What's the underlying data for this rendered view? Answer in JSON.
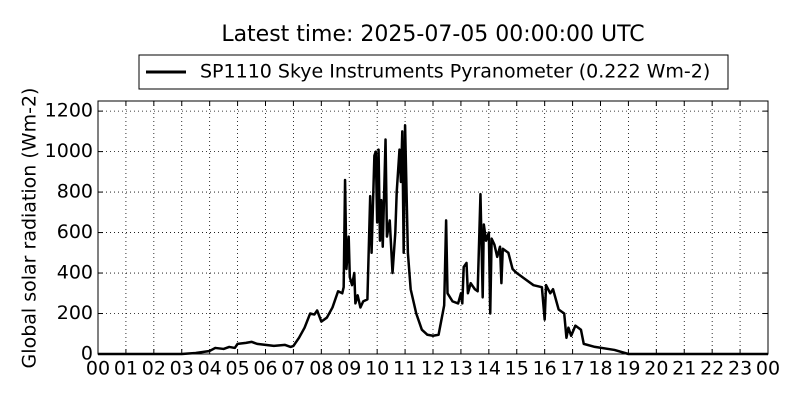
{
  "chart_data": {
    "type": "line",
    "title": "Latest time: 2025-07-05 00:00:00 UTC",
    "ylabel": "Global solar radiation (Wm-2)",
    "legend": "upper center",
    "grid": true,
    "xlim": [
      0,
      24
    ],
    "ylim": [
      0,
      1250
    ],
    "yticks": [
      0,
      200,
      400,
      600,
      800,
      1000,
      1200
    ],
    "xticks": [
      {
        "value": 0,
        "label": "00"
      },
      {
        "value": 1,
        "label": "01"
      },
      {
        "value": 2,
        "label": "02"
      },
      {
        "value": 3,
        "label": "03"
      },
      {
        "value": 4,
        "label": "04"
      },
      {
        "value": 5,
        "label": "05"
      },
      {
        "value": 6,
        "label": "06"
      },
      {
        "value": 7,
        "label": "07"
      },
      {
        "value": 8,
        "label": "08"
      },
      {
        "value": 9,
        "label": "09"
      },
      {
        "value": 10,
        "label": "10"
      },
      {
        "value": 11,
        "label": "11"
      },
      {
        "value": 12,
        "label": "12"
      },
      {
        "value": 13,
        "label": "13"
      },
      {
        "value": 14,
        "label": "14"
      },
      {
        "value": 15,
        "label": "15"
      },
      {
        "value": 16,
        "label": "16"
      },
      {
        "value": 17,
        "label": "17"
      },
      {
        "value": 18,
        "label": "18"
      },
      {
        "value": 19,
        "label": "19"
      },
      {
        "value": 20,
        "label": "20"
      },
      {
        "value": 21,
        "label": "21"
      },
      {
        "value": 22,
        "label": "22"
      },
      {
        "value": 23,
        "label": "23"
      },
      {
        "value": 24,
        "label": "00"
      }
    ],
    "x": [
      0,
      3,
      3.5,
      4,
      4.2,
      4.5,
      4.7,
      4.9,
      5,
      5.3,
      5.5,
      5.7,
      6,
      6.3,
      6.7,
      6.9,
      7,
      7.2,
      7.4,
      7.6,
      7.75,
      7.85,
      8,
      8.2,
      8.4,
      8.6,
      8.75,
      8.8,
      8.85,
      8.9,
      8.98,
      9.02,
      9.1,
      9.18,
      9.22,
      9.3,
      9.4,
      9.5,
      9.65,
      9.75,
      9.8,
      9.9,
      9.95,
      10,
      10.05,
      10.1,
      10.15,
      10.2,
      10.3,
      10.35,
      10.45,
      10.55,
      10.65,
      10.7,
      10.8,
      10.85,
      10.9,
      10.95,
      11,
      11.1,
      11.2,
      11.4,
      11.6,
      11.8,
      12,
      12.2,
      12.4,
      12.47,
      12.52,
      12.7,
      12.9,
      13,
      13.05,
      13.1,
      13.2,
      13.25,
      13.35,
      13.5,
      13.6,
      13.7,
      13.78,
      13.82,
      13.9,
      14,
      14.05,
      14.1,
      14.2,
      14.3,
      14.4,
      14.45,
      14.5,
      14.7,
      14.85,
      15,
      15.3,
      15.6,
      15.9,
      16,
      16.05,
      16.2,
      16.3,
      16.5,
      16.7,
      16.78,
      16.85,
      16.95,
      17.1,
      17.3,
      17.4,
      17.8,
      18.5,
      19,
      24
    ],
    "series": [
      {
        "name": "SP1110 Skye Instruments Pyranometer (0.222 Wm-2)",
        "color": "#000000",
        "values": [
          0,
          0,
          5,
          15,
          30,
          25,
          35,
          30,
          50,
          55,
          60,
          50,
          45,
          40,
          45,
          35,
          40,
          80,
          130,
          200,
          195,
          215,
          160,
          180,
          230,
          310,
          300,
          330,
          860,
          420,
          580,
          380,
          340,
          400,
          250,
          290,
          230,
          260,
          270,
          780,
          500,
          980,
          1000,
          650,
          1010,
          560,
          760,
          530,
          1060,
          580,
          660,
          400,
          600,
          800,
          1010,
          850,
          1100,
          500,
          1130,
          500,
          320,
          200,
          120,
          95,
          90,
          95,
          240,
          660,
          300,
          260,
          250,
          300,
          250,
          430,
          450,
          300,
          350,
          320,
          310,
          790,
          280,
          640,
          560,
          600,
          200,
          570,
          540,
          480,
          530,
          350,
          520,
          500,
          420,
          400,
          370,
          340,
          330,
          170,
          340,
          300,
          320,
          220,
          200,
          80,
          130,
          90,
          140,
          120,
          50,
          35,
          20,
          0,
          0
        ]
      }
    ]
  }
}
